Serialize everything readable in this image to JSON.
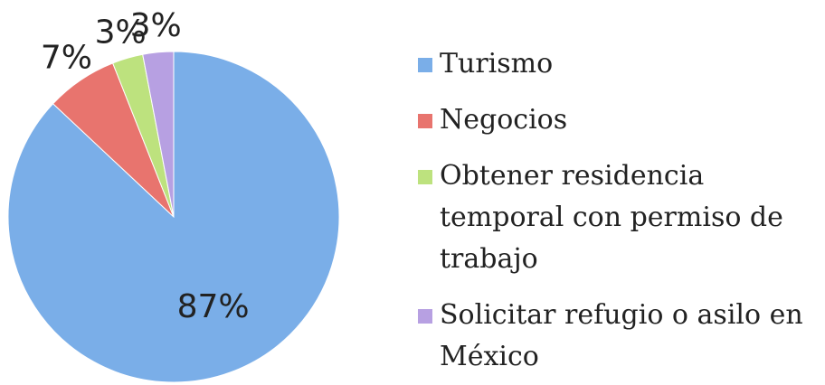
{
  "chart_data": {
    "type": "pie",
    "categories": [
      "Turismo",
      "Negocios",
      "Obtener residencia temporal con permiso de trabajo",
      "Solicitar refugio o asilo en México"
    ],
    "values": [
      87,
      7,
      3,
      3
    ],
    "value_labels": [
      "87%",
      "7%",
      "3%",
      "3%"
    ],
    "colors": [
      "#7aaee8",
      "#e8746e",
      "#bde27e",
      "#b7a0e2"
    ],
    "legend": "right"
  }
}
